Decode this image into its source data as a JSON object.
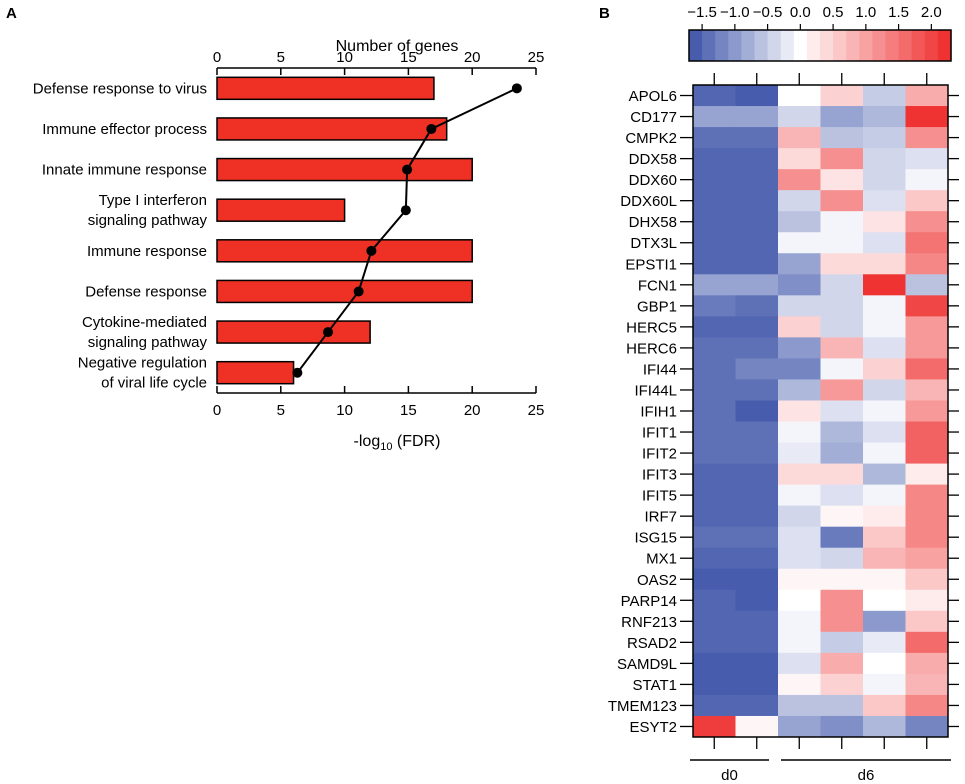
{
  "panels": {
    "a": "A",
    "b": "B"
  },
  "chart_data": [
    {
      "type": "bar",
      "title": "",
      "categories": [
        [
          "Defense response to virus"
        ],
        [
          "Immune effector process"
        ],
        [
          "Innate immune response"
        ],
        [
          "Type I interferon",
          "signaling pathway"
        ],
        [
          "Immune response"
        ],
        [
          "Defense response"
        ],
        [
          "Cytokine-mediated",
          "signaling pathway"
        ],
        [
          "Negative regulation",
          "of viral life cycle"
        ]
      ],
      "series": [
        {
          "name": "-log10 (FDR)",
          "type": "bar",
          "color": "#ee3124",
          "values": [
            17,
            18,
            20,
            10,
            20,
            20,
            12,
            6
          ]
        },
        {
          "name": "Number of genes",
          "type": "line",
          "color": "#000000",
          "values": [
            23.5,
            16.8,
            14.9,
            14.8,
            12.1,
            11.1,
            8.7,
            6.3
          ]
        }
      ],
      "xlabel_bottom": {
        "prefix": "-log",
        "sub": "10",
        "suffix": " (FDR)"
      },
      "xlabel_top": "Number of genes",
      "xlim": [
        0,
        25
      ],
      "ticks": [
        "0",
        "5",
        "10",
        "15",
        "20",
        "25"
      ]
    },
    {
      "type": "heatmap",
      "genes": [
        "APOL6",
        "CD177",
        "CMPK2",
        "DDX58",
        "DDX60",
        "DDX60L",
        "DHX58",
        "DTX3L",
        "EPSTI1",
        "FCN1",
        "GBP1",
        "HERC5",
        "HERC6",
        "IFI44",
        "IFI44L",
        "IFIH1",
        "IFIT1",
        "IFIT2",
        "IFIT3",
        "IFIT5",
        "IRF7",
        "ISG15",
        "MX1",
        "OAS2",
        "PARP14",
        "RNF213",
        "RSAD2",
        "SAMD9L",
        "STAT1",
        "TMEM123",
        "ESYT2"
      ],
      "groups": [
        {
          "label": "d0",
          "columns": 2
        },
        {
          "label": "d6",
          "columns": 4
        }
      ],
      "colorbar": {
        "min": -1.7,
        "max": 2.3,
        "ticks": [
          "−1.5",
          "−1.0",
          "−0.5",
          "0.0",
          "0.5",
          "1.0",
          "1.5",
          "2.0"
        ],
        "low_color": "#3b52a8",
        "mid_color": "#ffffff",
        "high_color": "#ee2a2a"
      },
      "values": [
        [
          -1.5,
          -1.6,
          0.0,
          0.5,
          -0.5,
          0.9
        ],
        [
          -0.9,
          -0.9,
          -0.4,
          -0.9,
          -0.7,
          2.2
        ],
        [
          -1.4,
          -1.4,
          0.8,
          -0.6,
          -0.5,
          1.2
        ],
        [
          -1.5,
          -1.5,
          0.4,
          1.2,
          -0.4,
          -0.3
        ],
        [
          -1.5,
          -1.5,
          1.2,
          0.3,
          -0.4,
          -0.1
        ],
        [
          -1.5,
          -1.5,
          -0.4,
          1.2,
          -0.3,
          0.6
        ],
        [
          -1.5,
          -1.5,
          -0.6,
          -0.1,
          0.3,
          1.2
        ],
        [
          -1.5,
          -1.5,
          -0.1,
          -0.1,
          -0.3,
          1.5
        ],
        [
          -1.5,
          -1.5,
          -0.9,
          0.4,
          0.4,
          1.3
        ],
        [
          -0.9,
          -0.9,
          -1.1,
          -0.4,
          2.2,
          -0.6
        ],
        [
          -1.3,
          -1.4,
          -0.4,
          -0.4,
          -0.1,
          2.0
        ],
        [
          -1.5,
          -1.5,
          0.5,
          -0.4,
          -0.1,
          1.1
        ],
        [
          -1.4,
          -1.4,
          -1.0,
          0.8,
          -0.3,
          1.1
        ],
        [
          -1.4,
          -1.2,
          -1.2,
          -0.1,
          0.5,
          1.6
        ],
        [
          -1.4,
          -1.4,
          -0.7,
          1.1,
          -0.4,
          0.8
        ],
        [
          -1.4,
          -1.6,
          0.3,
          -0.3,
          -0.1,
          1.1
        ],
        [
          -1.4,
          -1.4,
          -0.1,
          -0.7,
          -0.3,
          1.7
        ],
        [
          -1.4,
          -1.4,
          -0.2,
          -0.8,
          -0.1,
          1.7
        ],
        [
          -1.5,
          -1.5,
          0.4,
          0.4,
          -0.7,
          0.2
        ],
        [
          -1.5,
          -1.5,
          -0.1,
          -0.3,
          -0.1,
          1.3
        ],
        [
          -1.5,
          -1.5,
          -0.4,
          0.1,
          0.2,
          1.3
        ],
        [
          -1.4,
          -1.4,
          -0.3,
          -1.3,
          0.6,
          1.3
        ],
        [
          -1.5,
          -1.5,
          -0.3,
          -0.4,
          0.8,
          1.0
        ],
        [
          -1.6,
          -1.6,
          0.1,
          0.1,
          0.1,
          0.6
        ],
        [
          -1.5,
          -1.6,
          0.0,
          1.2,
          0.0,
          0.2
        ],
        [
          -1.5,
          -1.5,
          -0.1,
          1.2,
          -1.0,
          0.6
        ],
        [
          -1.5,
          -1.5,
          -0.1,
          -0.5,
          -0.2,
          1.6
        ],
        [
          -1.6,
          -1.6,
          -0.3,
          0.9,
          0.0,
          0.9
        ],
        [
          -1.6,
          -1.6,
          0.1,
          0.5,
          -0.1,
          0.8
        ],
        [
          -1.5,
          -1.5,
          -0.6,
          -0.6,
          0.6,
          1.3
        ],
        [
          2.1,
          0.1,
          -0.9,
          -1.1,
          -0.7,
          -1.2
        ]
      ]
    }
  ]
}
